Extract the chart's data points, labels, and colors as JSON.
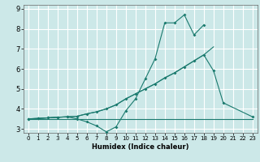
{
  "title": "",
  "xlabel": "Humidex (Indice chaleur)",
  "xlim": [
    -0.5,
    23.5
  ],
  "ylim": [
    2.8,
    9.2
  ],
  "xticks": [
    0,
    1,
    2,
    3,
    4,
    5,
    6,
    7,
    8,
    9,
    10,
    11,
    12,
    13,
    14,
    15,
    16,
    17,
    18,
    19,
    20,
    21,
    22,
    23
  ],
  "yticks": [
    3,
    4,
    5,
    6,
    7,
    8,
    9
  ],
  "bg_color": "#cce8e8",
  "grid_color": "#ffffff",
  "line_color": "#1a7a6e",
  "line1_x": [
    0,
    1,
    2,
    3,
    4,
    5,
    6,
    7,
    8,
    9,
    10,
    11,
    12,
    13,
    14,
    15,
    16,
    17,
    18,
    19,
    20,
    21,
    22,
    23
  ],
  "line1_y": [
    3.5,
    3.5,
    3.5,
    3.5,
    3.5,
    3.5,
    3.5,
    3.5,
    3.5,
    3.5,
    3.5,
    3.5,
    3.5,
    3.5,
    3.5,
    3.5,
    3.5,
    3.5,
    3.5,
    3.5,
    3.5,
    3.5,
    3.5,
    3.5
  ],
  "line2_x": [
    0,
    1,
    2,
    3,
    4,
    5,
    6,
    7,
    8,
    9,
    10,
    11,
    12,
    13,
    14,
    15,
    16,
    17,
    18,
    19
  ],
  "line2_y": [
    3.5,
    3.52,
    3.55,
    3.58,
    3.6,
    3.63,
    3.75,
    3.85,
    4.0,
    4.2,
    4.5,
    4.75,
    5.0,
    5.25,
    5.55,
    5.8,
    6.1,
    6.4,
    6.7,
    7.1
  ],
  "line3_x": [
    0,
    1,
    2,
    3,
    4,
    5,
    6,
    7,
    8,
    9,
    10,
    11,
    12,
    13,
    14,
    15,
    16,
    17,
    18
  ],
  "line3_y": [
    3.5,
    3.52,
    3.55,
    3.58,
    3.6,
    3.5,
    3.35,
    3.15,
    2.85,
    3.1,
    3.9,
    4.5,
    5.5,
    6.5,
    8.3,
    8.3,
    8.7,
    7.7,
    8.2
  ],
  "line4_x": [
    0,
    1,
    2,
    3,
    4,
    5,
    6,
    7,
    8,
    9,
    10,
    11,
    12,
    13,
    14,
    15,
    16,
    17,
    18,
    19,
    20,
    23
  ],
  "line4_y": [
    3.5,
    3.52,
    3.55,
    3.58,
    3.6,
    3.63,
    3.75,
    3.85,
    4.0,
    4.2,
    4.5,
    4.75,
    5.0,
    5.25,
    5.55,
    5.8,
    6.1,
    6.4,
    6.7,
    5.9,
    4.3,
    3.6
  ]
}
